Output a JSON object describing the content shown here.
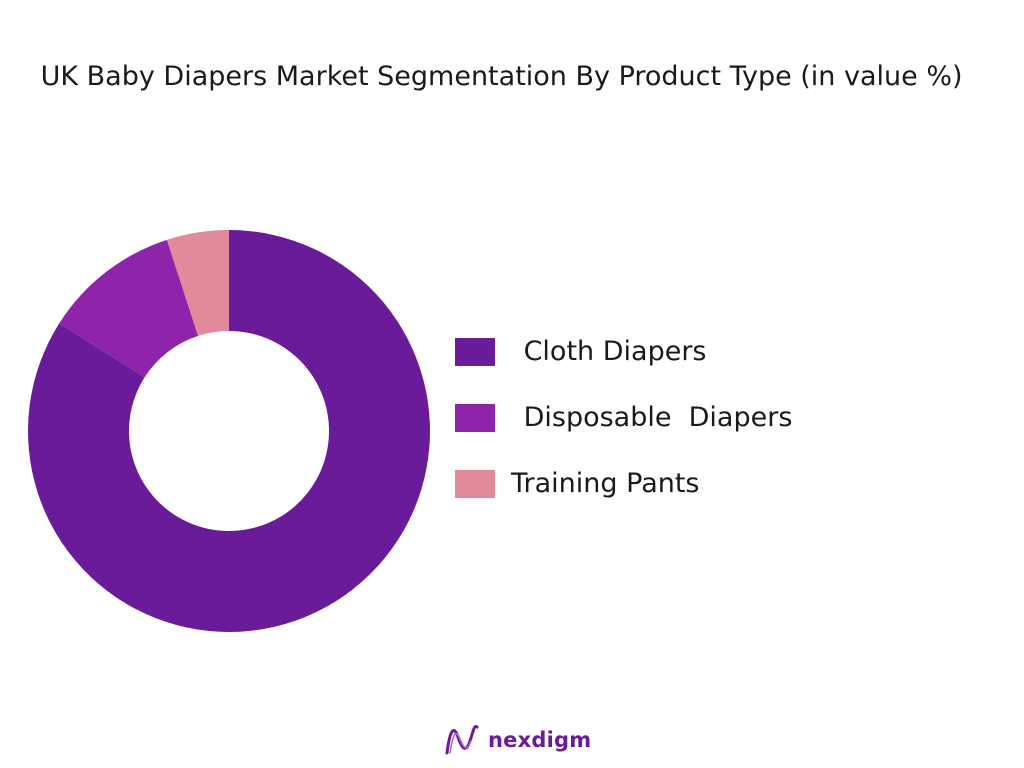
{
  "chart_data": {
    "type": "pie",
    "title": " UK Baby Diapers Market Segmentation By Product Type (in value %)",
    "categories": [
      "Cloth Diapers",
      "Disposable  Diapers",
      "Training Pants"
    ],
    "legend_labels": [
      " Cloth Diapers",
      " Disposable  Diapers",
      "Training Pants"
    ],
    "values": [
      84,
      11,
      5
    ],
    "colors": [
      "#6a1b9a",
      "#8e24aa",
      "#e08a9c"
    ],
    "hole": true,
    "legend_position": "right"
  },
  "brand": {
    "name": "nexdigm",
    "color": "#6a1b9a"
  }
}
